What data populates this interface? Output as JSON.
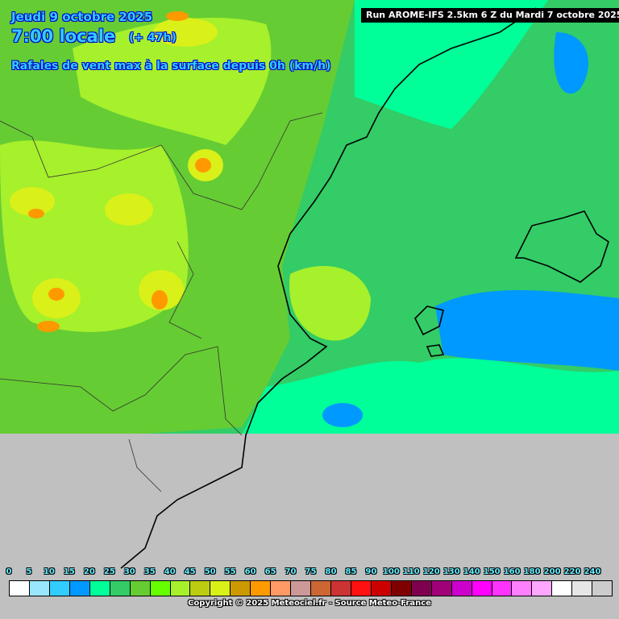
{
  "header": {
    "date": "Jeudi 9 octobre 2025",
    "time": "7:00 locale",
    "lead": "(+ 47h)",
    "parameter": "Rafales de vent max à la surface depuis 0h (km/h)",
    "run": "Run AROME-IFS 2.5km 6 Z du Mardi 7 octobre 2025"
  },
  "legend": {
    "labels": [
      "0",
      "5",
      "10",
      "15",
      "20",
      "25",
      "30",
      "35",
      "40",
      "45",
      "50",
      "55",
      "60",
      "65",
      "70",
      "75",
      "80",
      "85",
      "90",
      "100",
      "110",
      "120",
      "130",
      "140",
      "150",
      "160",
      "180",
      "200",
      "220",
      "240"
    ],
    "colors": [
      "#ffffff",
      "#99e6ff",
      "#33ccff",
      "#0099ff",
      "#00ff99",
      "#33cc66",
      "#66cc33",
      "#66ff00",
      "#a6f02c",
      "#bbcc11",
      "#d9f019",
      "#cc9900",
      "#ff9900",
      "#ff9966",
      "#cc9999",
      "#cc6633",
      "#cc3333",
      "#ff1111",
      "#cc0000",
      "#800000",
      "#800050",
      "#a00078",
      "#cc00cc",
      "#ff00ff",
      "#ff33ff",
      "#ff80ff",
      "#ffa6ff",
      "#ffffff",
      "#e6e6e6",
      "#cccccc"
    ]
  },
  "footer": {
    "copyright": "Copyright © 2025 Meteociel.fr - Source Meteo-France"
  },
  "colors": {
    "no_data": "#c0c0c0",
    "title_text": "#33ccff",
    "border_lines": "#000000"
  }
}
